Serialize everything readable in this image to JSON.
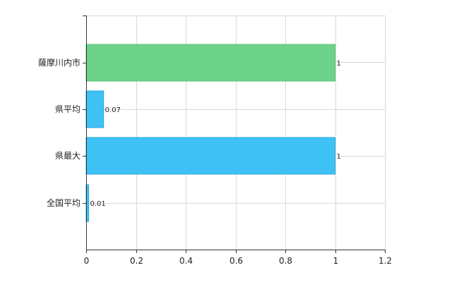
{
  "chart_data": {
    "type": "bar",
    "orientation": "horizontal",
    "categories": [
      "薩摩川内市",
      "県平均",
      "県最大",
      "全国平均"
    ],
    "values": [
      1,
      0.07,
      1,
      0.01
    ],
    "data_labels": [
      "1",
      "0.07",
      "1",
      "0.01"
    ],
    "bar_colors": [
      "#6dd38a",
      "#3ec1f5",
      "#3ec1f5",
      "#3ec1f5"
    ],
    "bar_edge_colors": [
      "#5bbf77",
      "#2aa8dc",
      "#2aa8dc",
      "#2aa8dc"
    ],
    "xlim": [
      0,
      1.2
    ],
    "xticks": [
      0,
      0.2,
      0.4,
      0.6,
      0.8,
      1,
      1.2
    ],
    "xtick_labels": [
      "0",
      "0.2",
      "0.4",
      "0.6",
      "0.8",
      "1",
      "1.2"
    ],
    "grid": true,
    "legend": "none",
    "title": "",
    "xlabel": "",
    "ylabel": ""
  }
}
